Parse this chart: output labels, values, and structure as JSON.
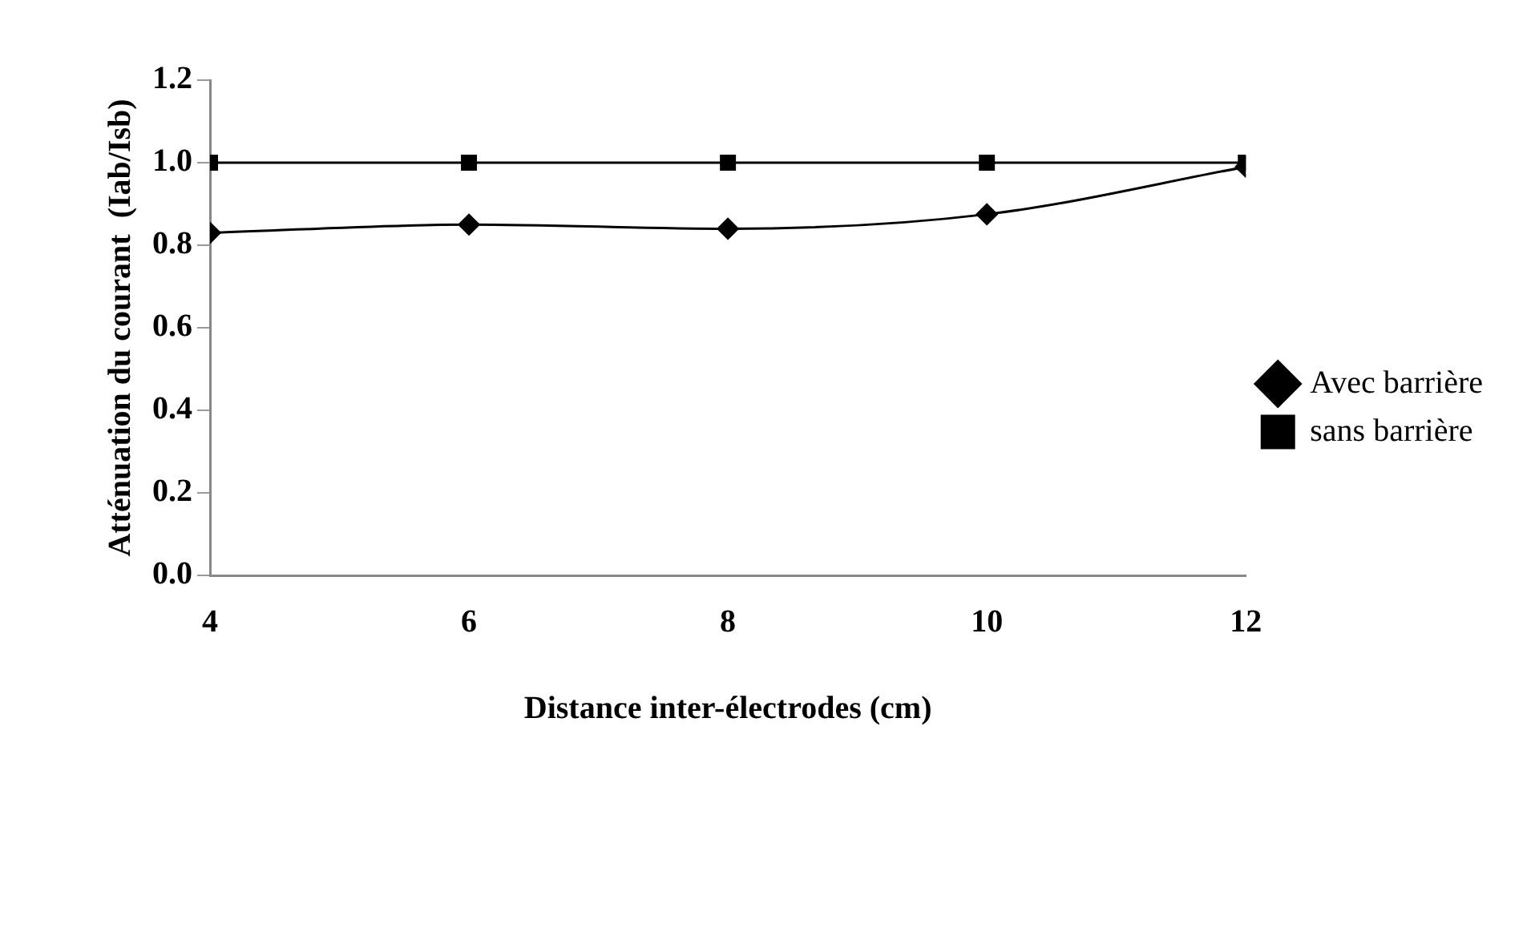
{
  "chart_data": {
    "type": "line",
    "xlabel": "Distance inter-électrodes (cm)",
    "ylabel": "Atténuation du courant  (Iab/Isb)",
    "x": [
      4,
      6,
      8,
      10,
      12
    ],
    "xlim": [
      4,
      12
    ],
    "xticks": [
      4,
      6,
      8,
      10,
      12
    ],
    "ylim": [
      0,
      1.2
    ],
    "yticks": [
      {
        "value": 0,
        "label": "0.0"
      },
      {
        "value": 0.2,
        "label": "0.2"
      },
      {
        "value": 0.4,
        "label": "0.4"
      },
      {
        "value": 0.6,
        "label": "0.6"
      },
      {
        "value": 0.8,
        "label": "0.8"
      },
      {
        "value": 1,
        "label": "1.0"
      },
      {
        "value": 1.2,
        "label": "1.2"
      }
    ],
    "series": [
      {
        "name": "Avec barrière",
        "color": "#000000",
        "marker": "diamond",
        "values": [
          0.83,
          0.85,
          0.84,
          0.875,
          0.99
        ]
      },
      {
        "name": "sans barrière",
        "color": "#000000",
        "marker": "square",
        "values": [
          1,
          1,
          1,
          1,
          1
        ]
      }
    ],
    "grid": false,
    "legend": "right",
    "line_style": "solid"
  }
}
